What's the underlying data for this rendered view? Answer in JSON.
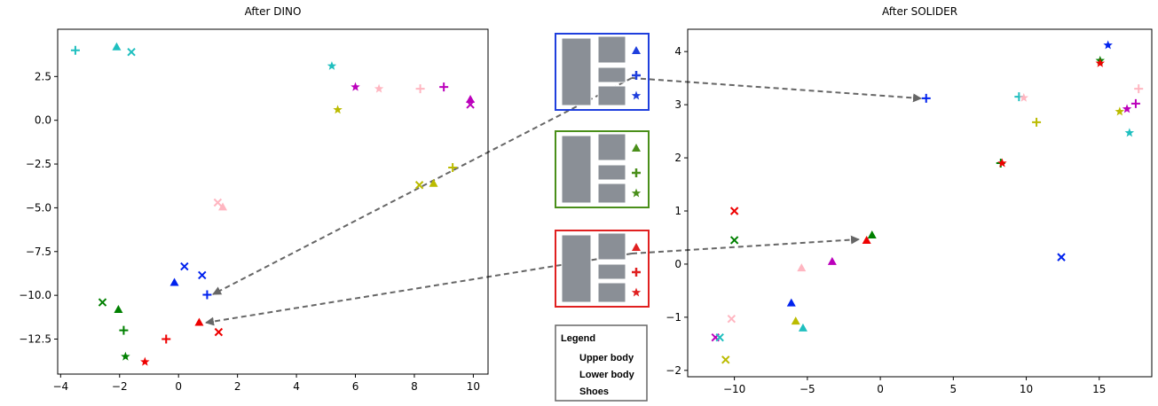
{
  "chart_data": [
    {
      "type": "scatter",
      "title": "After DINO",
      "xlim": [
        -4.1,
        10.5
      ],
      "ylim": [
        -14.5,
        5.2
      ],
      "xticks": [
        {
          "value": -4,
          "label": "−4"
        },
        {
          "value": -2,
          "label": "−2"
        },
        0,
        2,
        4,
        6,
        8,
        10
      ],
      "yticks": [
        2.5,
        {
          "value": 0,
          "label": "0.0"
        },
        {
          "value": -2.5,
          "label": "−2.5"
        },
        {
          "value": -5,
          "label": "−5.0"
        },
        {
          "value": -7.5,
          "label": "−7.5"
        },
        {
          "value": -10,
          "label": "−10.0"
        },
        {
          "value": -12.5,
          "label": "−12.5"
        }
      ],
      "series": [
        {
          "marker": "triangle",
          "x": [
            -2.1,
            9.9,
            8.65,
            1.5,
            -0.14,
            -2.04,
            0.7
          ],
          "y": [
            4.2,
            1.2,
            -3.6,
            -4.95,
            -9.26,
            -10.8,
            -11.54
          ],
          "colors": [
            "#1fbfbf",
            "#bb00bb",
            "#bbbb00",
            "#ffb6c1",
            "#0022ee",
            "#008000",
            "#ee0000"
          ]
        },
        {
          "marker": "plus",
          "x": [
            -3.5,
            8.2,
            9.0,
            9.3,
            0.97,
            -1.86,
            -0.42
          ],
          "y": [
            4.0,
            1.8,
            1.9,
            -2.7,
            -9.97,
            -12.0,
            -12.5
          ],
          "colors": [
            "#1fbfbf",
            "#ffb6c1",
            "#bb00bb",
            "#bbbb00",
            "#0022ee",
            "#008000",
            "#ee0000"
          ]
        },
        {
          "marker": "star",
          "x": [
            5.2,
            6.0,
            6.8,
            5.4,
            -1.8,
            -1.14
          ],
          "y": [
            3.1,
            1.9,
            1.8,
            0.6,
            -13.5,
            -13.8
          ],
          "colors": [
            "#1fbfbf",
            "#bb00bb",
            "#ffb6c1",
            "#bbbb00",
            "#008000",
            "#ee0000"
          ]
        },
        {
          "marker": "x",
          "x": [
            -1.6,
            9.9,
            8.17,
            1.33,
            0.2,
            0.8,
            -2.58,
            1.36
          ],
          "y": [
            3.9,
            0.9,
            -3.7,
            -4.7,
            -8.35,
            -8.85,
            -10.4,
            -12.1
          ],
          "colors": [
            "#1fbfbf",
            "#bb00bb",
            "#bbbb00",
            "#ffb6c1",
            "#0022ee",
            "#0022ee",
            "#008000",
            "#ee0000"
          ]
        }
      ]
    },
    {
      "type": "scatter",
      "title": "After SOLIDER",
      "xlim": [
        -13.2,
        18.6
      ],
      "ylim": [
        -2.12,
        4.42
      ],
      "xticks": [
        {
          "value": -10,
          "label": "−10"
        },
        {
          "value": -5,
          "label": "−5"
        },
        0,
        5,
        10,
        15
      ],
      "yticks": [
        {
          "value": -2,
          "label": "−2"
        },
        {
          "value": -1,
          "label": "−1"
        },
        0,
        1,
        2,
        3,
        4
      ],
      "series": [
        {
          "marker": "triangle",
          "x": [
            -0.57,
            -0.94,
            -3.3,
            -5.4,
            -6.1,
            -5.8,
            -5.3
          ],
          "y": [
            0.55,
            0.45,
            0.05,
            -0.07,
            -0.73,
            -1.07,
            -1.2
          ],
          "colors": [
            "#008000",
            "#ee0000",
            "#bb00bb",
            "#ffb6c1",
            "#0022ee",
            "#bbbb00",
            "#1fbfbf"
          ]
        },
        {
          "marker": "plus",
          "x": [
            3.14,
            17.7,
            17.5,
            9.5,
            10.7,
            8.25
          ],
          "y": [
            3.12,
            3.3,
            3.02,
            3.15,
            2.67,
            1.9
          ],
          "colors": [
            "#0022ee",
            "#ffb6c1",
            "#bb00bb",
            "#1fbfbf",
            "#bbbb00",
            "#008000"
          ]
        },
        {
          "marker": "star",
          "x": [
            15.6,
            15.06,
            15.06,
            16.9,
            16.4,
            17.07,
            9.83,
            8.35
          ],
          "y": [
            4.12,
            3.83,
            3.78,
            2.92,
            2.87,
            2.47,
            3.13,
            1.9
          ],
          "colors": [
            "#0022ee",
            "#008000",
            "#ee0000",
            "#bb00bb",
            "#bbbb00",
            "#1fbfbf",
            "#ffb6c1",
            "#ee0000"
          ]
        },
        {
          "marker": "x",
          "x": [
            -10,
            -10,
            12.4,
            -10.2,
            -11.3,
            -11,
            -10.6
          ],
          "y": [
            1.0,
            0.45,
            0.13,
            -1.03,
            -1.38,
            -1.38,
            -1.8
          ],
          "colors": [
            "#ee0000",
            "#008000",
            "#0022ee",
            "#ffb6c1",
            "#bb00bb",
            "#1fbfbf",
            "#bbbb00"
          ]
        }
      ]
    }
  ],
  "legend": {
    "title": "Legend",
    "entries": [
      "Upper body",
      "Lower body",
      "Shoes"
    ]
  }
}
